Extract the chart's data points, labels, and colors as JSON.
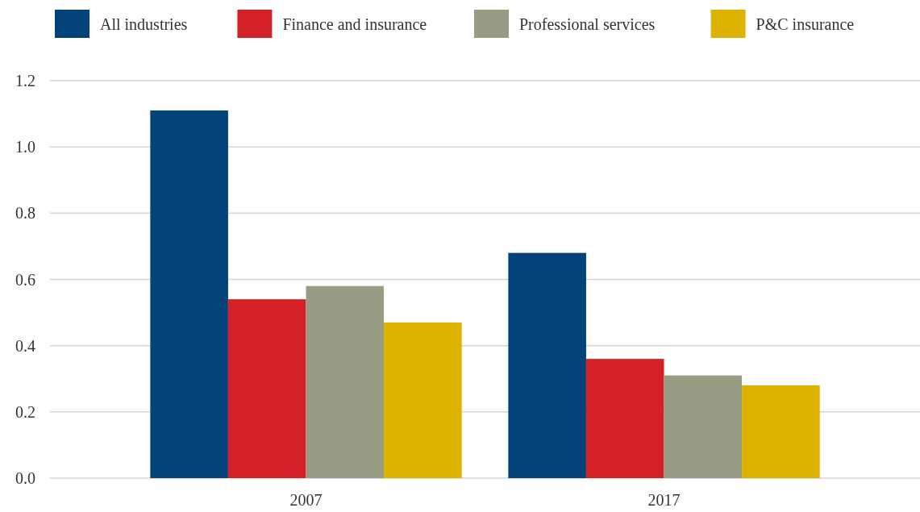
{
  "chart_data": {
    "type": "bar",
    "categories": [
      "2007",
      "2017"
    ],
    "series": [
      {
        "name": "All industries",
        "color": "#04427a",
        "values": [
          1.11,
          0.68
        ]
      },
      {
        "name": "Finance and insurance",
        "color": "#d42027",
        "values": [
          0.54,
          0.36
        ]
      },
      {
        "name": "Professional services",
        "color": "#999c82",
        "values": [
          0.58,
          0.31
        ]
      },
      {
        "name": "P&C insurance",
        "color": "#dcb100",
        "values": [
          0.47,
          0.28
        ]
      }
    ],
    "ylim": [
      0,
      1.2
    ],
    "yticks": [
      {
        "value": 0,
        "label": "0.0"
      },
      0.2,
      0.4,
      0.6,
      0.8,
      {
        "value": 1,
        "label": "1.0"
      },
      1.2
    ],
    "grid": "y",
    "legend": "top"
  }
}
